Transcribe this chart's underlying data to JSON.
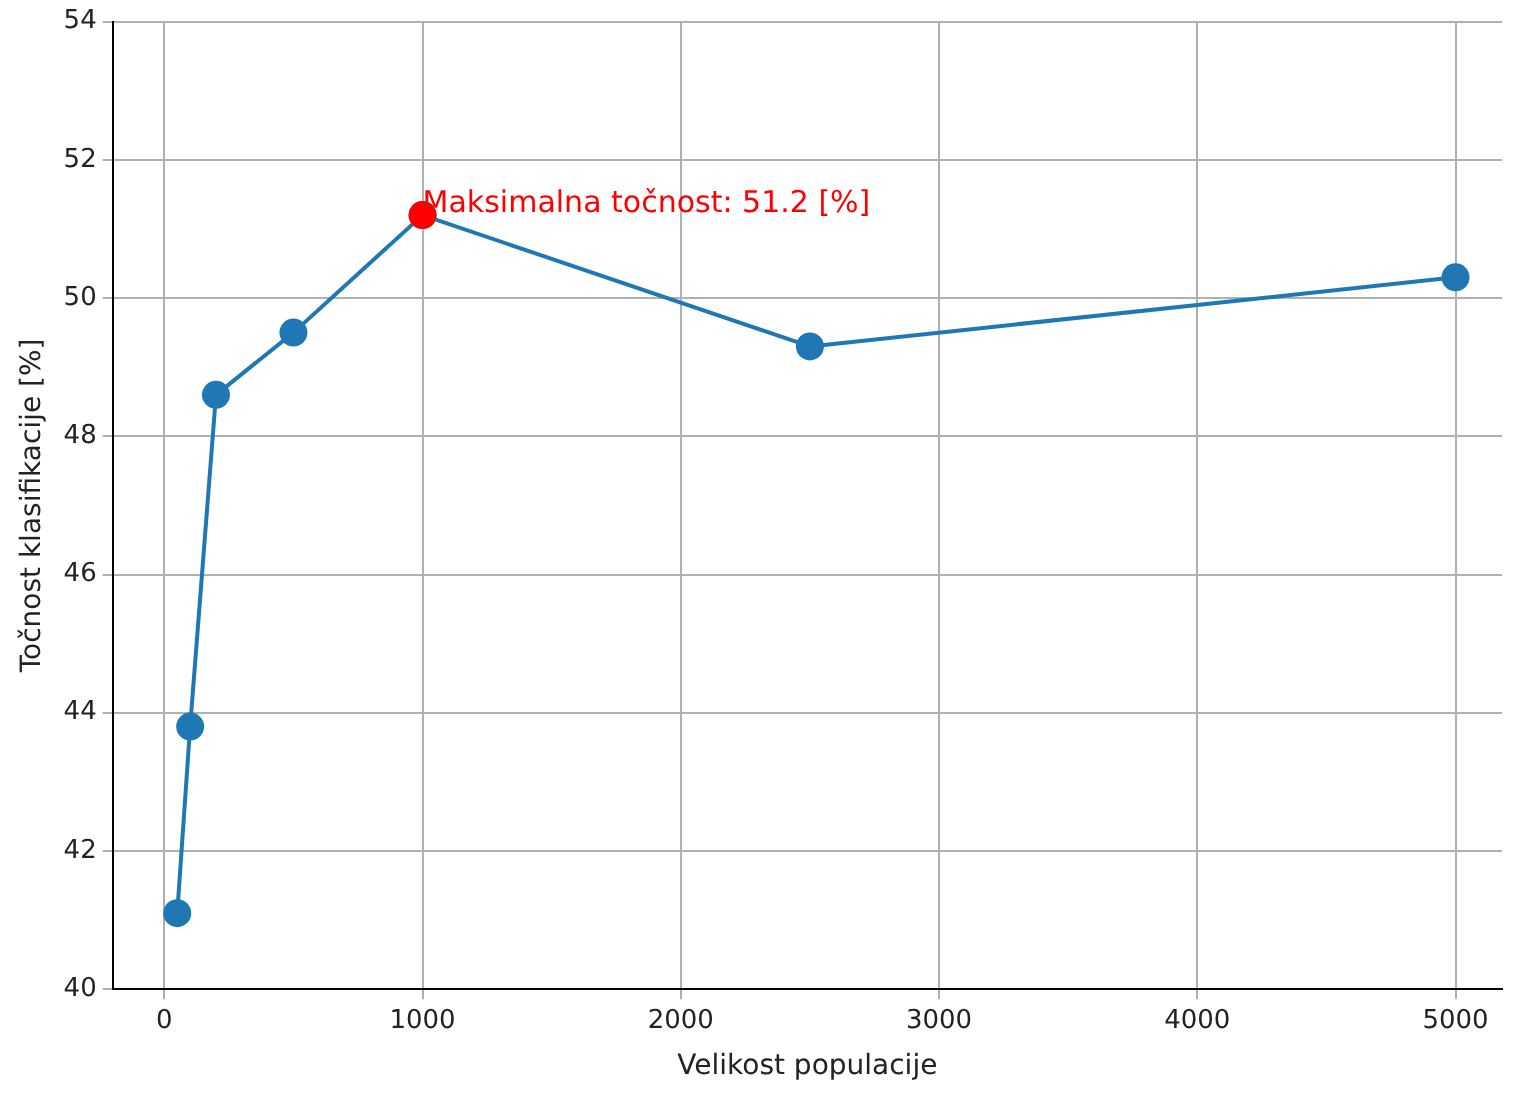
{
  "chart_data": {
    "type": "line",
    "xlabel": "Velikost populacije",
    "ylabel": "Točnost klasifikacije [%]",
    "x": [
      50,
      100,
      200,
      500,
      1000,
      2500,
      5000
    ],
    "series": [
      {
        "color": "#1f77b4",
        "values": [
          41.1,
          43.8,
          48.6,
          49.5,
          51.2,
          49.3,
          50.3
        ]
      },
      {
        "type": "scatter",
        "color": "#ff0000",
        "x": [
          1000
        ],
        "values": [
          51.2
        ]
      }
    ],
    "xlim": [
      -200,
      5180
    ],
    "xticks": [
      0,
      1000,
      2000,
      3000,
      4000,
      5000
    ],
    "ylim": [
      40,
      54
    ],
    "yticks": [
      40,
      42,
      44,
      46,
      48,
      50,
      52,
      54
    ],
    "annotations": [
      {
        "text": "Maksimalna točnost: 51.2 [%]",
        "x": 1000,
        "y": 51.2
      }
    ],
    "grid": true,
    "legend": false,
    "marker": "circle",
    "line_style": "solid"
  }
}
